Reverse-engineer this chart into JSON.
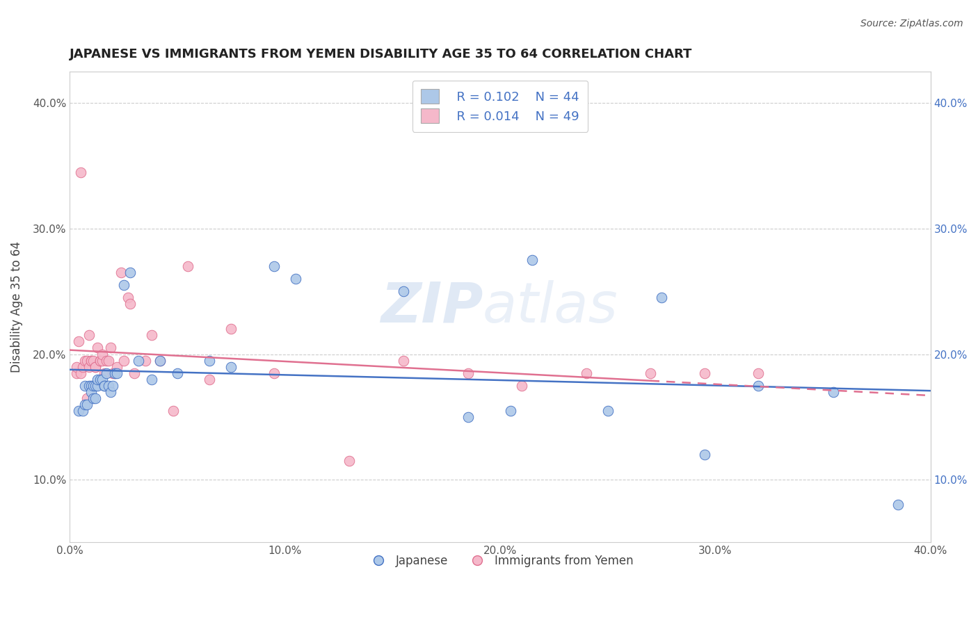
{
  "title": "JAPANESE VS IMMIGRANTS FROM YEMEN DISABILITY AGE 35 TO 64 CORRELATION CHART",
  "source": "Source: ZipAtlas.com",
  "ylabel": "Disability Age 35 to 64",
  "xlim": [
    0.0,
    0.4
  ],
  "ylim": [
    0.05,
    0.425
  ],
  "yticks": [
    0.1,
    0.2,
    0.3,
    0.4
  ],
  "ytick_labels": [
    "10.0%",
    "20.0%",
    "30.0%",
    "40.0%"
  ],
  "xticks": [
    0.0,
    0.1,
    0.2,
    0.3,
    0.4
  ],
  "xtick_labels": [
    "0.0%",
    "10.0%",
    "20.0%",
    "30.0%",
    "40.0%"
  ],
  "legend_r1": "R = 0.102",
  "legend_n1": "N = 44",
  "legend_r2": "R = 0.014",
  "legend_n2": "N = 49",
  "color_japanese": "#adc8e8",
  "color_yemen": "#f5b8ca",
  "color_line_japanese": "#4472c4",
  "color_line_yemen": "#e07090",
  "japanese_x": [
    0.004,
    0.006,
    0.007,
    0.007,
    0.008,
    0.009,
    0.01,
    0.01,
    0.011,
    0.011,
    0.012,
    0.012,
    0.013,
    0.013,
    0.014,
    0.015,
    0.016,
    0.016,
    0.017,
    0.018,
    0.019,
    0.02,
    0.021,
    0.022,
    0.025,
    0.028,
    0.032,
    0.038,
    0.042,
    0.05,
    0.065,
    0.075,
    0.095,
    0.105,
    0.155,
    0.185,
    0.205,
    0.215,
    0.25,
    0.275,
    0.295,
    0.32,
    0.355,
    0.385
  ],
  "japanese_y": [
    0.155,
    0.155,
    0.16,
    0.175,
    0.16,
    0.175,
    0.175,
    0.17,
    0.175,
    0.165,
    0.175,
    0.165,
    0.175,
    0.18,
    0.18,
    0.18,
    0.175,
    0.175,
    0.185,
    0.175,
    0.17,
    0.175,
    0.185,
    0.185,
    0.255,
    0.265,
    0.195,
    0.18,
    0.195,
    0.185,
    0.195,
    0.19,
    0.27,
    0.26,
    0.25,
    0.15,
    0.155,
    0.275,
    0.155,
    0.245,
    0.12,
    0.175,
    0.17,
    0.08
  ],
  "yemen_x": [
    0.003,
    0.003,
    0.004,
    0.005,
    0.005,
    0.006,
    0.007,
    0.008,
    0.008,
    0.009,
    0.009,
    0.01,
    0.01,
    0.011,
    0.012,
    0.012,
    0.013,
    0.014,
    0.014,
    0.015,
    0.015,
    0.016,
    0.017,
    0.018,
    0.019,
    0.02,
    0.021,
    0.022,
    0.024,
    0.025,
    0.027,
    0.028,
    0.03,
    0.035,
    0.038,
    0.042,
    0.048,
    0.055,
    0.065,
    0.075,
    0.095,
    0.13,
    0.155,
    0.185,
    0.21,
    0.24,
    0.27,
    0.295,
    0.32
  ],
  "yemen_y": [
    0.185,
    0.19,
    0.21,
    0.185,
    0.345,
    0.19,
    0.195,
    0.195,
    0.165,
    0.19,
    0.215,
    0.195,
    0.195,
    0.195,
    0.19,
    0.19,
    0.205,
    0.195,
    0.195,
    0.195,
    0.2,
    0.185,
    0.195,
    0.195,
    0.205,
    0.185,
    0.185,
    0.19,
    0.265,
    0.195,
    0.245,
    0.24,
    0.185,
    0.195,
    0.215,
    0.195,
    0.155,
    0.27,
    0.18,
    0.22,
    0.185,
    0.115,
    0.195,
    0.185,
    0.175,
    0.185,
    0.185,
    0.185,
    0.185
  ]
}
